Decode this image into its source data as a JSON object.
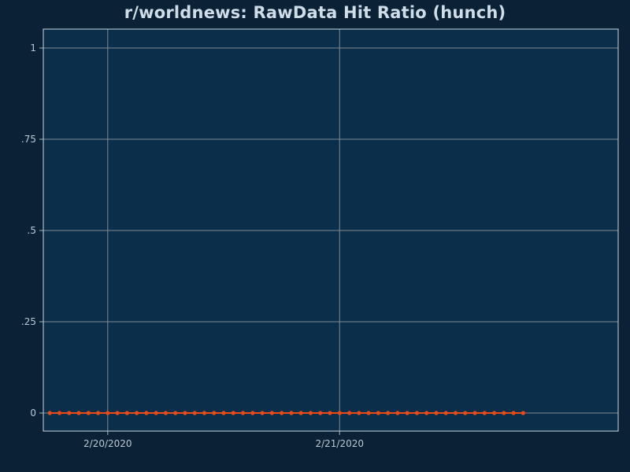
{
  "chart_data": {
    "type": "line",
    "title": "r/worldnews: RawData Hit Ratio (hunch)",
    "xlabel": "",
    "ylabel": "",
    "ylim": [
      0,
      1
    ],
    "yticks": [
      {
        "value": 0,
        "label": "0"
      },
      {
        "value": 0.25,
        "label": ".25"
      },
      {
        "value": 0.5,
        "label": ".5"
      },
      {
        "value": 0.75,
        "label": ".75"
      },
      {
        "value": 1,
        "label": "1"
      }
    ],
    "xlim": [
      "2020-02-19 17:20",
      "2020-02-22 04:50"
    ],
    "xticks": [
      {
        "value": "2020-02-20 00:00",
        "label": "2/20/2020"
      },
      {
        "value": "2020-02-21 00:00",
        "label": "2/21/2020"
      }
    ],
    "grid": true,
    "colors": {
      "background": "#0b2236",
      "plot_background": "#0b2f4a",
      "grid": "#7d8a94",
      "line": "#e84b1a",
      "marker": "#e84b1a"
    },
    "series": [
      {
        "x": [
          "2020-02-19 18:00",
          "2020-02-19 19:00",
          "2020-02-19 20:00",
          "2020-02-19 21:00",
          "2020-02-19 22:00",
          "2020-02-19 23:00",
          "2020-02-20 00:00",
          "2020-02-20 01:00",
          "2020-02-20 02:00",
          "2020-02-20 03:00",
          "2020-02-20 04:00",
          "2020-02-20 05:00",
          "2020-02-20 06:00",
          "2020-02-20 07:00",
          "2020-02-20 08:00",
          "2020-02-20 09:00",
          "2020-02-20 10:00",
          "2020-02-20 11:00",
          "2020-02-20 12:00",
          "2020-02-20 13:00",
          "2020-02-20 14:00",
          "2020-02-20 15:00",
          "2020-02-20 16:00",
          "2020-02-20 17:00",
          "2020-02-20 18:00",
          "2020-02-20 19:00",
          "2020-02-20 20:00",
          "2020-02-20 21:00",
          "2020-02-20 22:00",
          "2020-02-20 23:00",
          "2020-02-21 00:00",
          "2020-02-21 01:00",
          "2020-02-21 02:00",
          "2020-02-21 03:00",
          "2020-02-21 04:00",
          "2020-02-21 05:00",
          "2020-02-21 06:00",
          "2020-02-21 07:00",
          "2020-02-21 08:00",
          "2020-02-21 09:00",
          "2020-02-21 10:00",
          "2020-02-21 11:00",
          "2020-02-21 12:00",
          "2020-02-21 13:00",
          "2020-02-21 14:00",
          "2020-02-21 15:00",
          "2020-02-21 16:00",
          "2020-02-21 17:00",
          "2020-02-21 18:00",
          "2020-02-21 19:00"
        ],
        "values": [
          0,
          0,
          0,
          0,
          0,
          0,
          0,
          0,
          0,
          0,
          0,
          0,
          0,
          0,
          0,
          0,
          0,
          0,
          0,
          0,
          0,
          0,
          0,
          0,
          0,
          0,
          0,
          0,
          0,
          0,
          0,
          0,
          0,
          0,
          0,
          0,
          0,
          0,
          0,
          0,
          0,
          0,
          0,
          0,
          0,
          0,
          0,
          0,
          0,
          0
        ]
      }
    ]
  }
}
